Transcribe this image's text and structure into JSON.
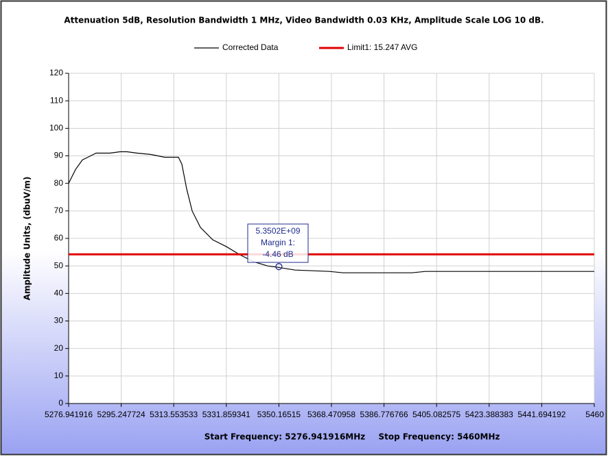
{
  "chart_data": {
    "type": "line",
    "title": "Attenuation 5dB, Resolution Bandwidth 1 MHz, Video Bandwidth 0.03 KHz, Amplitude Scale LOG 10 dB.",
    "ylabel": "Amplitude Units, (dbuV/m)",
    "xlabels": [
      "Start Frequency: 5276.941916MHz",
      "Stop Frequency: 5460MHz"
    ],
    "xlim": [
      5276.941916,
      5460
    ],
    "ylim": [
      0,
      120
    ],
    "yticks": [
      0,
      10,
      20,
      30,
      40,
      50,
      60,
      70,
      80,
      90,
      100,
      110,
      120
    ],
    "xticks": [
      {
        "value": 5276.941916,
        "label": "5276.941916"
      },
      {
        "value": 5295.247724,
        "label": "5295.247724"
      },
      {
        "value": 5313.553533,
        "label": "5313.553533"
      },
      {
        "value": 5331.859341,
        "label": "5331.859341"
      },
      {
        "value": 5350.16515,
        "label": "5350.16515"
      },
      {
        "value": 5368.470958,
        "label": "5368.470958"
      },
      {
        "value": 5386.776766,
        "label": "5386.776766"
      },
      {
        "value": 5405.082575,
        "label": "5405.082575"
      },
      {
        "value": 5423.388383,
        "label": "5423.388383"
      },
      {
        "value": 5441.694192,
        "label": "5441.694192"
      },
      5460
    ],
    "grid": true,
    "x": [
      5276.94,
      5279.33,
      5281.72,
      5286.5,
      5291.28,
      5294.87,
      5297.25,
      5300.84,
      5305.62,
      5310.4,
      5315.18,
      5316.37,
      5318.05,
      5319.96,
      5322.83,
      5327.13,
      5331.91,
      5336.69,
      5341.47,
      5346.24,
      5349.83,
      5355.8,
      5367.75,
      5372.54,
      5396.43,
      5401.21,
      5460
    ],
    "series": [
      {
        "name": "Corrected Data",
        "color": "#000000",
        "values": [
          80,
          85,
          88.5,
          91,
          91,
          91.5,
          91.5,
          91,
          90.5,
          89.5,
          89.5,
          87,
          78,
          70,
          64,
          59.5,
          57,
          54,
          51.5,
          50,
          49.5,
          48.5,
          48,
          47.5,
          47.5,
          48,
          48
        ]
      },
      {
        "name": "Limit1: 15.247 AVG",
        "color": "#e00000",
        "level": 54.2
      }
    ],
    "marker": {
      "x": 5350.165155,
      "y": 49.75,
      "lines": [
        "5.3502E+09",
        "Margin 1:",
        "-4.46 dB"
      ],
      "color": "#1c2a8c"
    }
  }
}
